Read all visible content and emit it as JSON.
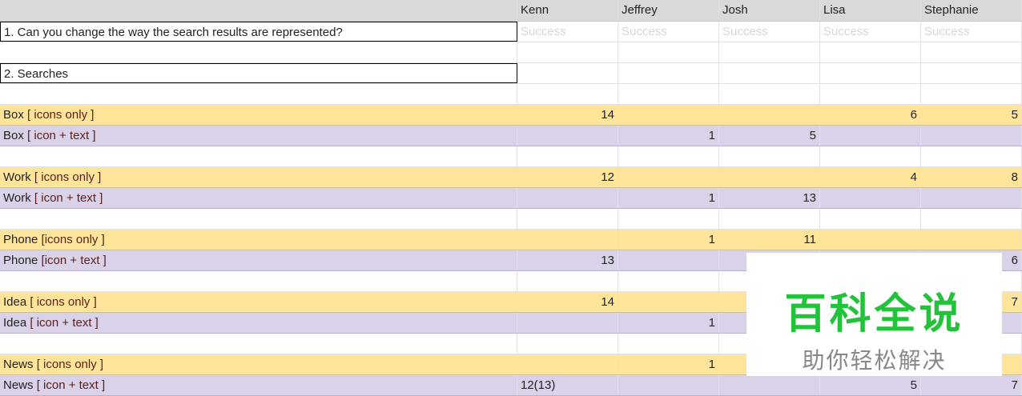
{
  "columns": [
    "",
    "Kenn",
    "Jeffrey",
    "Josh",
    "Lisa",
    "Stephanie"
  ],
  "question1": "1. Can you change the way the search results are represented?",
  "success_label": "Success",
  "question2": "2. Searches",
  "rows": [
    {
      "name": "Box",
      "variant": "[ icons only ]",
      "type": "icons",
      "values": [
        "14",
        "",
        "",
        "6",
        "5"
      ]
    },
    {
      "name": "Box",
      "variant": "[ icon + text ]",
      "type": "text",
      "values": [
        "",
        "1",
        "5",
        "",
        ""
      ]
    },
    {
      "name": "Work",
      "variant": "[ icons only ]",
      "type": "icons",
      "values": [
        "12",
        "",
        "",
        "4",
        "8"
      ]
    },
    {
      "name": "Work",
      "variant": "[ icon + text ]",
      "type": "text",
      "values": [
        "",
        "1",
        "13",
        "",
        ""
      ]
    },
    {
      "name": "Phone",
      "variant": "[icons only ]",
      "type": "icons",
      "values": [
        "",
        "1",
        "11",
        "",
        ""
      ]
    },
    {
      "name": "Phone",
      "variant": "[icon + text ]",
      "type": "text",
      "values": [
        "13",
        "",
        "",
        "",
        "6"
      ]
    },
    {
      "name": "Idea",
      "variant": "[ icons only ]",
      "type": "icons",
      "values": [
        "14",
        "",
        "",
        "",
        "7"
      ]
    },
    {
      "name": "Idea",
      "variant": "[ icon + text ]",
      "type": "text",
      "values": [
        "",
        "1",
        "",
        "",
        ""
      ]
    },
    {
      "name": "News",
      "variant": "[ icons only ]",
      "type": "icons",
      "values": [
        "",
        "1",
        "",
        "",
        ""
      ]
    },
    {
      "name": "News",
      "variant": "[ icon + text ]",
      "type": "text",
      "values": [
        "12(13)",
        "",
        "",
        "5",
        "7"
      ]
    }
  ],
  "watermark": {
    "title": "百科全说",
    "subtitle": "助你轻松解决"
  },
  "colors": {
    "icons_row": "#ffe599",
    "text_row": "#d9d2e9",
    "header": "#d9d9d9",
    "watermark_green": "#22c33a"
  }
}
